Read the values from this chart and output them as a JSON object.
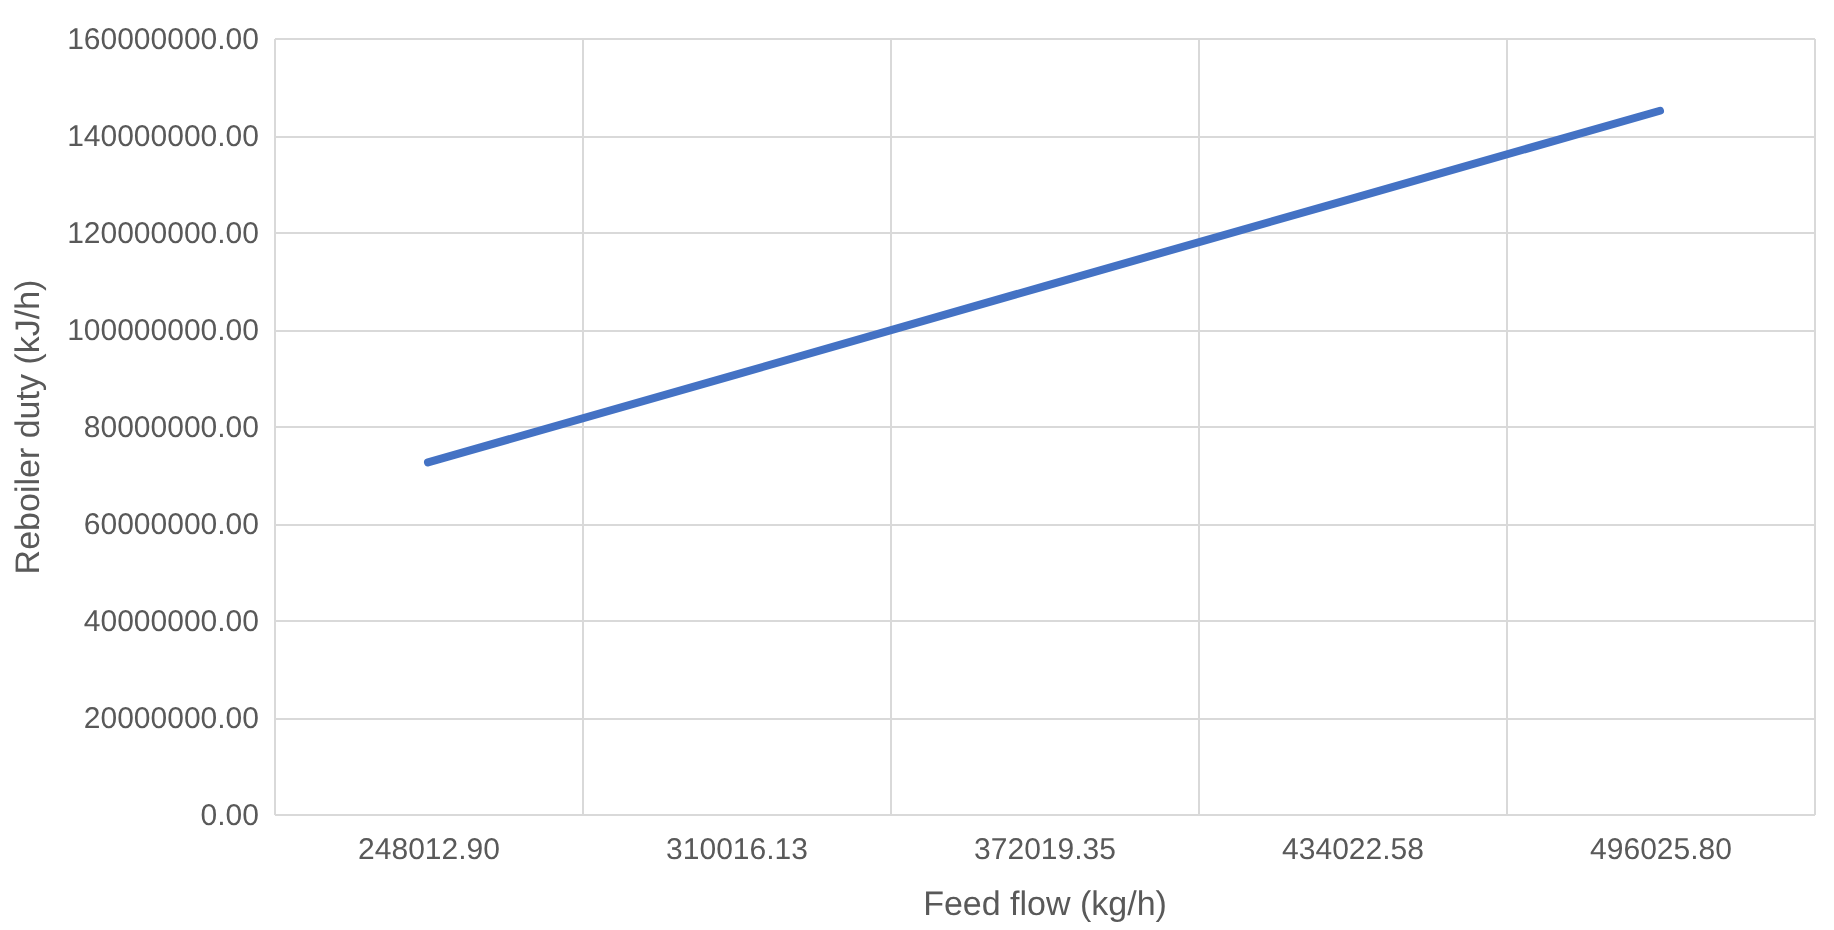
{
  "chart_data": {
    "type": "line",
    "xlabel": "Feed flow (kg/h)",
    "ylabel": "Reboiler duty (kJ/h)",
    "categories": [
      "248012.90",
      "310016.13",
      "372019.35",
      "434022.58",
      "496025.80"
    ],
    "series": [
      {
        "color": "#4472c4",
        "values": [
          72500000,
          90600000,
          108800000,
          126900000,
          145000000
        ]
      }
    ],
    "ylim": [
      0,
      160000000
    ],
    "yticks": [
      {
        "value": 0,
        "label": "0.00"
      },
      {
        "value": 20000000,
        "label": "20000000.00"
      },
      {
        "value": 40000000,
        "label": "40000000.00"
      },
      {
        "value": 60000000,
        "label": "60000000.00"
      },
      {
        "value": 80000000,
        "label": "80000000.00"
      },
      {
        "value": 100000000,
        "label": "100000000.00"
      },
      {
        "value": 120000000,
        "label": "120000000.00"
      },
      {
        "value": 140000000,
        "label": "140000000.00"
      },
      {
        "value": 160000000,
        "label": "160000000.00"
      }
    ],
    "grid": true,
    "legend": false,
    "marker": "none",
    "line_style": "solid"
  }
}
